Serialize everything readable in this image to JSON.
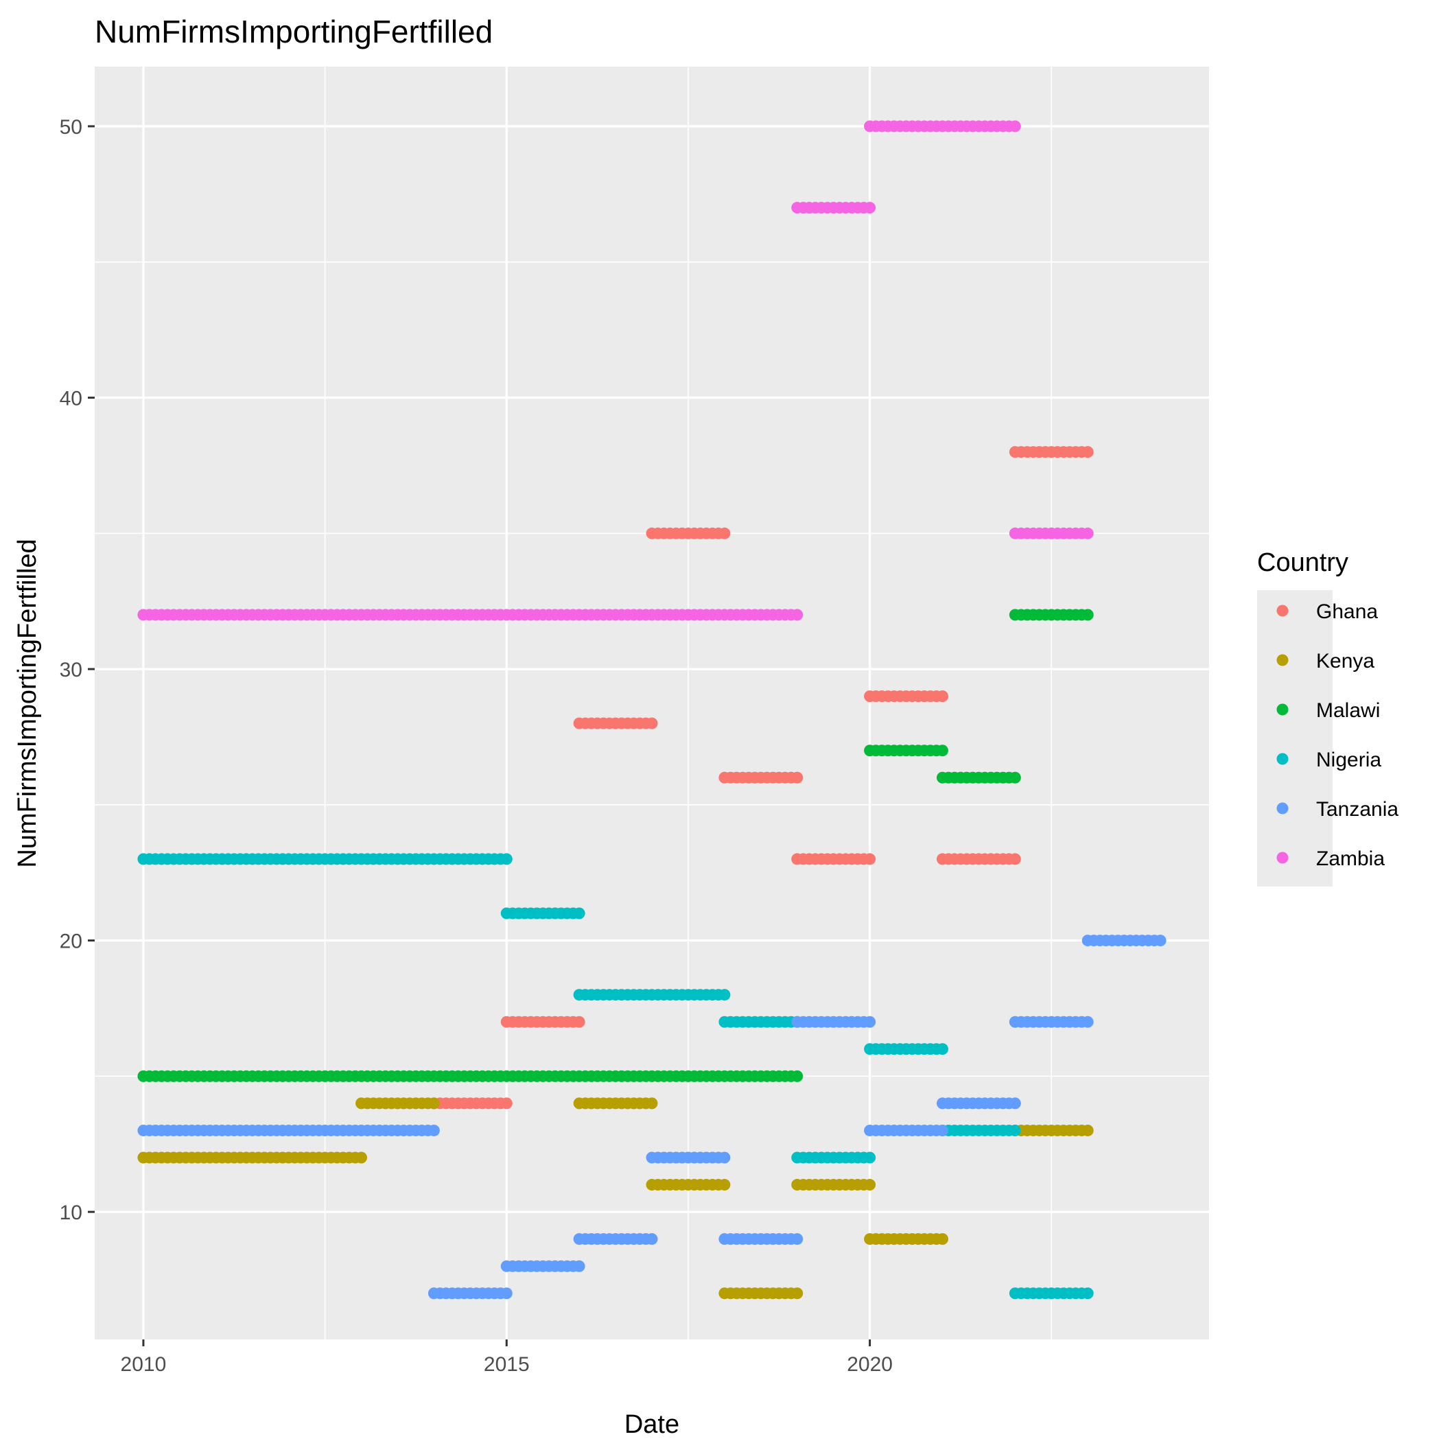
{
  "chart_data": {
    "type": "scatter",
    "title": "NumFirmsImportingFertfilled",
    "xlabel": "Date",
    "ylabel": "NumFirmsImportingFertfilled",
    "xlim": [
      2009.33,
      2024.67
    ],
    "ylim": [
      5.3,
      52.2
    ],
    "x_ticks": [
      2010,
      2015,
      2020
    ],
    "y_ticks": [
      10,
      20,
      30,
      40,
      50
    ],
    "grid": true,
    "legend": {
      "title": "Country",
      "position": "right"
    },
    "series": [
      {
        "name": "Ghana",
        "color": "#F8766D",
        "segments": [
          {
            "x": [
              2014,
              2015
            ],
            "y": 14
          },
          {
            "x": [
              2015,
              2016
            ],
            "y": 17
          },
          {
            "x": [
              2016,
              2017
            ],
            "y": 28
          },
          {
            "x": [
              2017,
              2018
            ],
            "y": 35
          },
          {
            "x": [
              2018,
              2019
            ],
            "y": 26
          },
          {
            "x": [
              2019,
              2020
            ],
            "y": 23
          },
          {
            "x": [
              2020,
              2021
            ],
            "y": 29
          },
          {
            "x": [
              2021,
              2022
            ],
            "y": 23
          },
          {
            "x": [
              2022,
              2023
            ],
            "y": 38
          }
        ]
      },
      {
        "name": "Kenya",
        "color": "#B79F00",
        "segments": [
          {
            "x": [
              2010,
              2013
            ],
            "y": 12
          },
          {
            "x": [
              2013,
              2014
            ],
            "y": 14
          },
          {
            "x": [
              2016,
              2017
            ],
            "y": 14
          },
          {
            "x": [
              2017,
              2018
            ],
            "y": 11
          },
          {
            "x": [
              2018,
              2019
            ],
            "y": 7
          },
          {
            "x": [
              2019,
              2020
            ],
            "y": 11
          },
          {
            "x": [
              2020,
              2021
            ],
            "y": 9
          },
          {
            "x": [
              2022,
              2023
            ],
            "y": 13
          }
        ]
      },
      {
        "name": "Malawi",
        "color": "#00BA38",
        "segments": [
          {
            "x": [
              2010,
              2019
            ],
            "y": 15
          },
          {
            "x": [
              2020,
              2021
            ],
            "y": 27
          },
          {
            "x": [
              2021,
              2022
            ],
            "y": 26
          },
          {
            "x": [
              2022,
              2023
            ],
            "y": 32
          }
        ]
      },
      {
        "name": "Nigeria",
        "color": "#00BFC4",
        "segments": [
          {
            "x": [
              2010,
              2015
            ],
            "y": 23
          },
          {
            "x": [
              2015,
              2016
            ],
            "y": 21
          },
          {
            "x": [
              2016,
              2018
            ],
            "y": 18
          },
          {
            "x": [
              2018,
              2019
            ],
            "y": 17
          },
          {
            "x": [
              2019,
              2020
            ],
            "y": 12
          },
          {
            "x": [
              2020,
              2021
            ],
            "y": 16
          },
          {
            "x": [
              2021,
              2022
            ],
            "y": 13
          },
          {
            "x": [
              2022,
              2023
            ],
            "y": 7
          }
        ]
      },
      {
        "name": "Tanzania",
        "color": "#619CFF",
        "segments": [
          {
            "x": [
              2010,
              2014
            ],
            "y": 13
          },
          {
            "x": [
              2014,
              2015
            ],
            "y": 7
          },
          {
            "x": [
              2015,
              2016
            ],
            "y": 8
          },
          {
            "x": [
              2016,
              2017
            ],
            "y": 9
          },
          {
            "x": [
              2017,
              2018
            ],
            "y": 12
          },
          {
            "x": [
              2018,
              2019
            ],
            "y": 9
          },
          {
            "x": [
              2019,
              2020
            ],
            "y": 17
          },
          {
            "x": [
              2020,
              2021
            ],
            "y": 13
          },
          {
            "x": [
              2021,
              2022
            ],
            "y": 14
          },
          {
            "x": [
              2022,
              2023
            ],
            "y": 17
          },
          {
            "x": [
              2023,
              2024
            ],
            "y": 20
          }
        ]
      },
      {
        "name": "Zambia",
        "color": "#F564E3",
        "segments": [
          {
            "x": [
              2010,
              2019
            ],
            "y": 32
          },
          {
            "x": [
              2019,
              2020
            ],
            "y": 47
          },
          {
            "x": [
              2020,
              2022
            ],
            "y": 50
          },
          {
            "x": [
              2022,
              2023
            ],
            "y": 35
          }
        ]
      }
    ]
  }
}
